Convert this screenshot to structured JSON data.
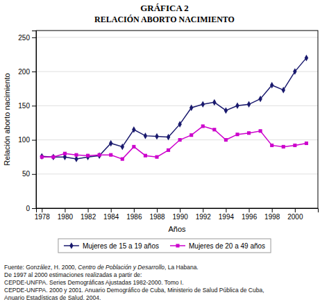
{
  "chart_data": {
    "type": "line",
    "title": "GRÁFICA 2",
    "subtitle": "RELACIÓN ABORTO NACIMIENTO",
    "x_label": "Años",
    "y_label": "Relación aborto nacimiento",
    "x": [
      1978,
      1979,
      1980,
      1981,
      1982,
      1983,
      1984,
      1985,
      1986,
      1987,
      1988,
      1989,
      1990,
      1991,
      1992,
      1993,
      1994,
      1995,
      1996,
      1997,
      1998,
      1999,
      2000,
      2001
    ],
    "series": [
      {
        "name": "Mujeres de 15 a 19 años",
        "color": "#1a1a6e",
        "marker": "diamond",
        "values": [
          76,
          75,
          75,
          72,
          75,
          77,
          95,
          90,
          115,
          106,
          105,
          104,
          123,
          147,
          152,
          155,
          143,
          150,
          152,
          160,
          180,
          173,
          200,
          220
        ]
      },
      {
        "name": "Mujeres de 20 a 49 años",
        "color": "#cc00cc",
        "marker": "square",
        "values": [
          75,
          75,
          80,
          78,
          77,
          78,
          78,
          72,
          90,
          77,
          75,
          85,
          100,
          107,
          120,
          115,
          100,
          108,
          110,
          113,
          92,
          90,
          92,
          95
        ]
      }
    ],
    "xlim": [
      1977.5,
      2002
    ],
    "xticks": [
      1978,
      1980,
      1982,
      1984,
      1986,
      1988,
      1990,
      1992,
      1994,
      1996,
      1998,
      2000
    ],
    "ylim": [
      0,
      260
    ],
    "yticks": [
      0,
      50,
      100,
      150,
      200,
      250
    ],
    "grid": true,
    "legend": "bottom",
    "annotations": [
      [
        "Fuente: González, H. 2000, ",
        "Centro de Población y Desarrollo",
        ", La Habana."
      ],
      [
        "De 1997 al 2000 estimaciones realizadas a partir de:"
      ],
      [
        "CEPDE-UNFPA. Series Demográficas Ajustadas 1982-2000. Tomo I."
      ],
      [
        "CEPDE-UNFPA. 2000 y 2001. Anuario Demográfico de Cuba, Ministerio de Salud Pública de Cuba,"
      ],
      [
        "Anuario Estadísticas de Salud. 2004."
      ]
    ]
  }
}
